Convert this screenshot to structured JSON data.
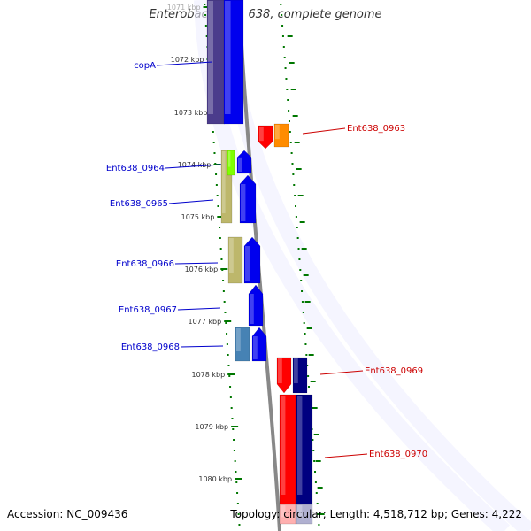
{
  "title": "Enterobacter sp. 638, complete genome",
  "footer": {
    "accession": "Accession: NC_009436",
    "topology_label": "Topology:",
    "topology": "circular",
    "length_label": "Length:",
    "length": "4,518,712 bp",
    "genes_label": "Genes:",
    "genes": "4,222"
  },
  "colors": {
    "label_left": "#0000cc",
    "label_right": "#cc0000",
    "tick": "#007700",
    "backbone": "#888888",
    "gene_blue": "#0000ee",
    "gene_darkblue": "#000080",
    "gene_red": "#ff0000",
    "gene_orange": "#ff8c00",
    "gene_purple": "#4b3c8c",
    "gene_khaki": "#bdb76b",
    "gene_lime": "#7fff00",
    "gene_steelblue": "#4682b4"
  },
  "ruler": [
    {
      "label": "1071 kbp"
    },
    {
      "label": "1072 kbp"
    },
    {
      "label": "1073 kbp"
    },
    {
      "label": "1074 kbp"
    },
    {
      "label": "1075 kbp"
    },
    {
      "label": "1076 kbp"
    },
    {
      "label": "1077 kbp"
    },
    {
      "label": "1078 kbp"
    },
    {
      "label": "1079 kbp"
    },
    {
      "label": "1080 kbp"
    }
  ],
  "gene_labels_left": [
    {
      "text": "copA"
    },
    {
      "text": "Ent638_0964"
    },
    {
      "text": "Ent638_0965"
    },
    {
      "text": "Ent638_0966"
    },
    {
      "text": "Ent638_0967"
    },
    {
      "text": "Ent638_0968"
    }
  ],
  "gene_labels_right": [
    {
      "text": "Ent638_0963"
    },
    {
      "text": "Ent638_0969"
    },
    {
      "text": "Ent638_0970"
    }
  ]
}
